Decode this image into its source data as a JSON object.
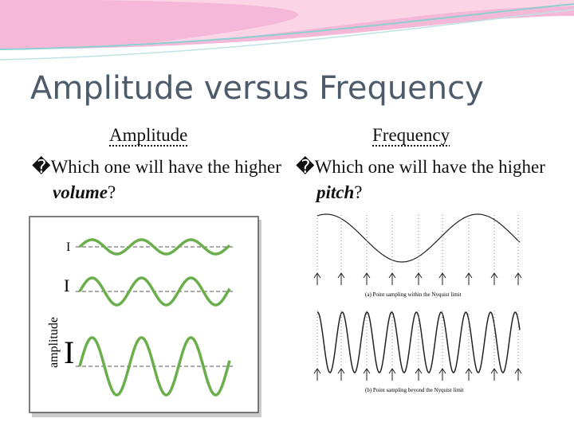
{
  "title": "Amplitude versus Frequency",
  "columns": [
    {
      "heading": "Amplitude",
      "bullet": "�",
      "question_start": "Which one will have the higher ",
      "question_emphasis": "volume",
      "question_end": "?",
      "figure": {
        "axis_label": "amplitude",
        "markers": [
          "I",
          "I",
          "I"
        ]
      }
    },
    {
      "heading": "Frequency",
      "bullet": "�",
      "question_start": "Which one will have the higher ",
      "question_emphasis": "pitch",
      "question_end": "?",
      "figure": {
        "captions": [
          "(a) Point sampling within the Nyquist limit",
          "(b) Point sampling beyond the Nyquist limit"
        ]
      }
    }
  ]
}
